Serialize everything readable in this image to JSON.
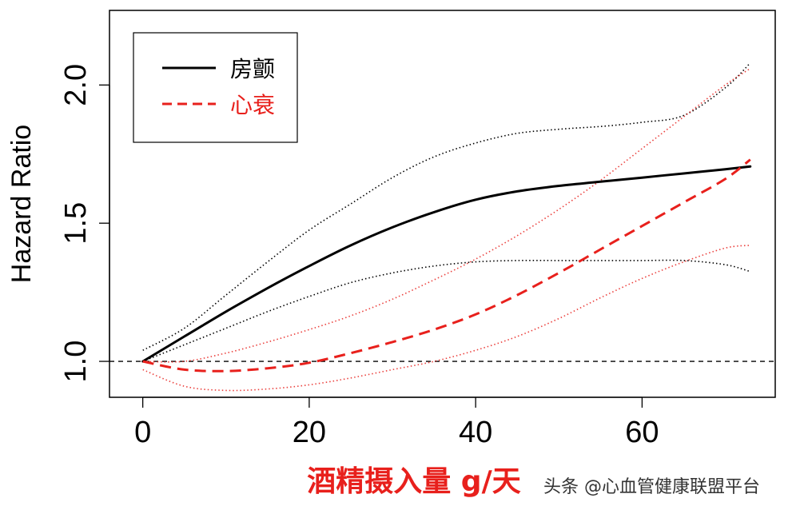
{
  "chart_data": {
    "type": "line",
    "xlabel": "酒精摄入量 g/天",
    "ylabel": "Hazard Ratio",
    "xlim": [
      -4,
      76
    ],
    "ylim": [
      0.87,
      2.27
    ],
    "x_ticks": [
      "0",
      "20",
      "40",
      "60"
    ],
    "y_ticks": [
      "1.0",
      "1.5",
      "2.0"
    ],
    "reference_line": {
      "y": 1.0,
      "style": "dashed"
    },
    "legend": {
      "placement": "top-left",
      "entries": [
        "房颤",
        "心衰"
      ]
    },
    "series": [
      {
        "name": "房颤",
        "color": "#000000",
        "style": "solid",
        "x": [
          0,
          5,
          10,
          15,
          20,
          25,
          30,
          35,
          40,
          45,
          50,
          55,
          60,
          65,
          70,
          73
        ],
        "y": [
          1.0,
          1.09,
          1.18,
          1.265,
          1.345,
          1.42,
          1.485,
          1.54,
          1.585,
          1.615,
          1.635,
          1.65,
          1.665,
          1.68,
          1.695,
          1.705
        ],
        "ci_lower": {
          "x": [
            0,
            5,
            10,
            15,
            20,
            25,
            30,
            35,
            40,
            45,
            50,
            55,
            60,
            65,
            70,
            73
          ],
          "y": [
            1.0,
            1.06,
            1.12,
            1.18,
            1.235,
            1.285,
            1.32,
            1.345,
            1.36,
            1.365,
            1.365,
            1.365,
            1.365,
            1.365,
            1.35,
            1.325
          ]
        },
        "ci_upper": {
          "x": [
            0,
            5,
            10,
            15,
            20,
            25,
            30,
            35,
            40,
            45,
            50,
            55,
            60,
            65,
            70,
            73
          ],
          "y": [
            1.04,
            1.12,
            1.24,
            1.36,
            1.475,
            1.57,
            1.665,
            1.74,
            1.79,
            1.825,
            1.84,
            1.85,
            1.865,
            1.89,
            1.99,
            2.08
          ]
        }
      },
      {
        "name": "心衰",
        "color": "#e8201c",
        "style": "dashed",
        "x": [
          0,
          5,
          10,
          15,
          20,
          25,
          30,
          35,
          40,
          45,
          50,
          55,
          60,
          65,
          70,
          73
        ],
        "y": [
          1.0,
          0.97,
          0.965,
          0.975,
          0.995,
          1.03,
          1.07,
          1.115,
          1.17,
          1.24,
          1.32,
          1.405,
          1.49,
          1.575,
          1.66,
          1.73
        ],
        "ci_lower": {
          "x": [
            0,
            5,
            10,
            15,
            20,
            25,
            30,
            35,
            40,
            45,
            50,
            55,
            60,
            65,
            70,
            73
          ],
          "y": [
            0.97,
            0.91,
            0.895,
            0.9,
            0.915,
            0.94,
            0.97,
            1.0,
            1.04,
            1.09,
            1.155,
            1.23,
            1.3,
            1.36,
            1.41,
            1.42
          ]
        },
        "ci_upper": {
          "x": [
            0,
            5,
            10,
            15,
            20,
            25,
            30,
            35,
            40,
            45,
            50,
            55,
            60,
            65,
            70,
            73
          ],
          "y": [
            1.0,
            1.0,
            1.03,
            1.07,
            1.115,
            1.165,
            1.225,
            1.295,
            1.37,
            1.455,
            1.55,
            1.655,
            1.77,
            1.885,
            2.0,
            2.06
          ]
        }
      }
    ]
  },
  "watermark": "头条 @心血管健康联盟平台"
}
